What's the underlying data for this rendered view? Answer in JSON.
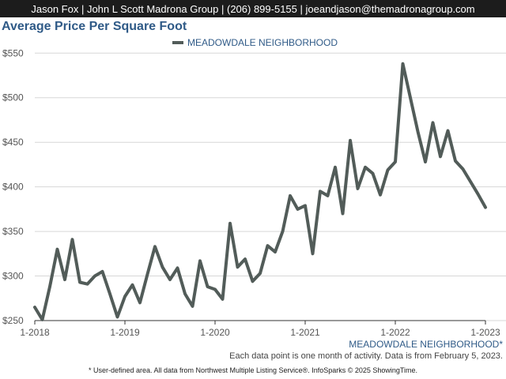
{
  "header": {
    "contact": "Jason Fox | John L Scott Madrona Group | (206) 899-5155 | joeandjason@themadronagroup.com"
  },
  "colors": {
    "title": "#2f5a87",
    "line": "#525c59",
    "bar": "#1c1c1c"
  },
  "chart_data": {
    "type": "line",
    "title": "Average Price Per Square Foot",
    "legend_position": "top-center",
    "series": [
      {
        "name": "MEADOWDALE NEIGHBORHOOD",
        "values": [
          265,
          251,
          288,
          330,
          296,
          341,
          293,
          291,
          300,
          305,
          280,
          254,
          277,
          290,
          270,
          302,
          333,
          310,
          296,
          309,
          280,
          266,
          317,
          288,
          285,
          274,
          359,
          310,
          319,
          294,
          303,
          334,
          327,
          350,
          390,
          375,
          379,
          325,
          395,
          390,
          422,
          370,
          452,
          398,
          422,
          415,
          391,
          419,
          428,
          538,
          500,
          462,
          428,
          472,
          434,
          463,
          429,
          420,
          406,
          392,
          377
        ]
      }
    ],
    "x_labels": [
      "1-2018",
      "1-2019",
      "1-2020",
      "1-2021",
      "1-2022",
      "1-2023"
    ],
    "x_label_index": [
      0,
      12,
      24,
      36,
      48,
      60
    ],
    "y_ticks": [
      250,
      300,
      350,
      400,
      450,
      500,
      550
    ],
    "y_tick_labels": [
      "$250",
      "$300",
      "$350",
      "$400",
      "$450",
      "$500",
      "$550"
    ],
    "ylim": [
      250,
      560
    ],
    "grid": "horizontal",
    "area_label": "MEADOWDALE NEIGHBORHOOD*"
  },
  "footer": {
    "note": "Each data point is one month of activity. Data is from February 5, 2023.",
    "credit": "* User-defined area. All data from Northwest Multiple Listing Service®. InfoSparks © 2025 ShowingTime."
  }
}
